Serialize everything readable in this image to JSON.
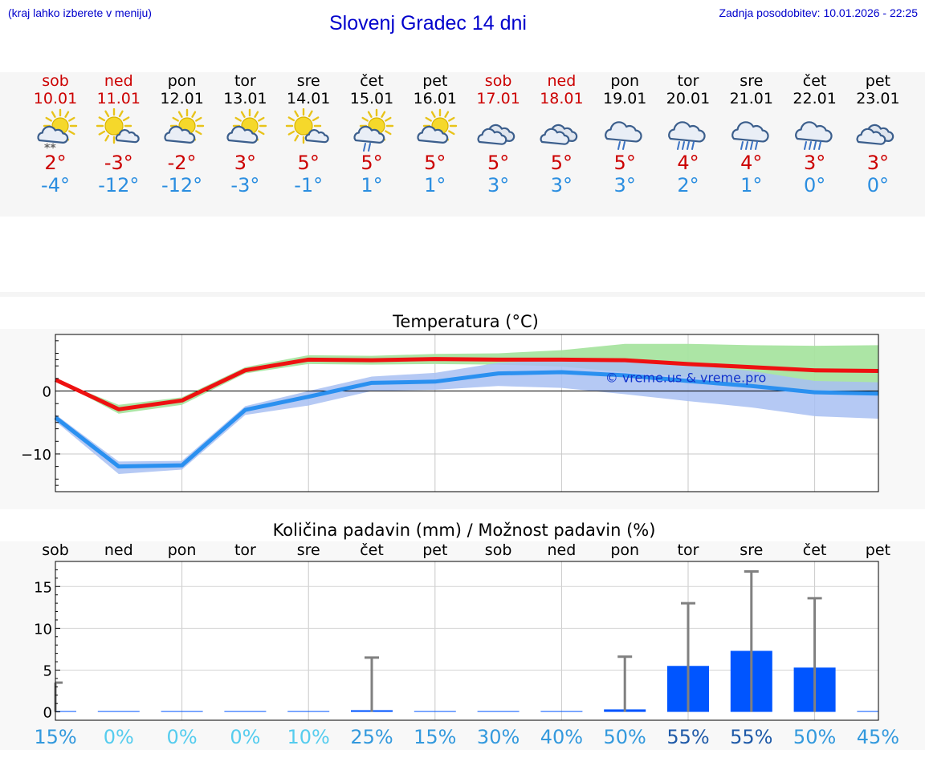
{
  "header": {
    "hint": "(kraj lahko izberete v meniju)",
    "title": "Slovenj Gradec 14 dni",
    "updated": "Zadnja posodobitev: 10.01.2026 - 22:25"
  },
  "days": [
    {
      "name": "sob",
      "date": "10.01",
      "weekend": true,
      "icon": "sun-cloud-snow",
      "tmax": "2°",
      "tmin": "-4°"
    },
    {
      "name": "ned",
      "date": "11.01",
      "weekend": true,
      "icon": "sun-small-cloud",
      "tmax": "-3°",
      "tmin": "-12°"
    },
    {
      "name": "pon",
      "date": "12.01",
      "weekend": false,
      "icon": "sun-cloud",
      "tmax": "-2°",
      "tmin": "-12°"
    },
    {
      "name": "tor",
      "date": "13.01",
      "weekend": false,
      "icon": "sun-cloud",
      "tmax": "3°",
      "tmin": "-3°"
    },
    {
      "name": "sre",
      "date": "14.01",
      "weekend": false,
      "icon": "sun-small-cloud",
      "tmax": "5°",
      "tmin": "-1°"
    },
    {
      "name": "čet",
      "date": "15.01",
      "weekend": false,
      "icon": "sun-cloud-rain",
      "tmax": "5°",
      "tmin": "1°"
    },
    {
      "name": "pet",
      "date": "16.01",
      "weekend": false,
      "icon": "sun-cloud",
      "tmax": "5°",
      "tmin": "1°"
    },
    {
      "name": "sob",
      "date": "17.01",
      "weekend": true,
      "icon": "cloudy",
      "tmax": "5°",
      "tmin": "3°"
    },
    {
      "name": "ned",
      "date": "18.01",
      "weekend": true,
      "icon": "cloudy",
      "tmax": "5°",
      "tmin": "3°"
    },
    {
      "name": "pon",
      "date": "19.01",
      "weekend": false,
      "icon": "cloud-light-rain",
      "tmax": "5°",
      "tmin": "3°"
    },
    {
      "name": "tor",
      "date": "20.01",
      "weekend": false,
      "icon": "cloud-rain",
      "tmax": "4°",
      "tmin": "2°"
    },
    {
      "name": "sre",
      "date": "21.01",
      "weekend": false,
      "icon": "cloud-rain",
      "tmax": "4°",
      "tmin": "1°"
    },
    {
      "name": "čet",
      "date": "22.01",
      "weekend": false,
      "icon": "cloud-rain",
      "tmax": "3°",
      "tmin": "0°"
    },
    {
      "name": "pet",
      "date": "23.01",
      "weekend": false,
      "icon": "cloudy",
      "tmax": "3°",
      "tmin": "0°"
    }
  ],
  "colors": {
    "max_line": "#ee1111",
    "min_line": "#2a90f0",
    "max_band": "#a8e4a0",
    "min_band": "#a8c0f2",
    "overlap_band": "#74bca8",
    "bar": "#0055ff",
    "whisker": "#808080",
    "weekend_text": "#cc0000",
    "tmin_text": "#2b8ee0"
  },
  "chart_data": [
    {
      "type": "line",
      "title": "Temperatura (°C)",
      "ylim": [
        -16,
        9
      ],
      "yticks": [
        -10,
        0
      ],
      "ytick_labels": [
        "−10",
        "0"
      ],
      "watermark": "© vreme.us & vreme.pro",
      "x": [
        0,
        1,
        2,
        3,
        4,
        5,
        6,
        7,
        8,
        9,
        10,
        11,
        12,
        13
      ],
      "series": [
        {
          "name": "max",
          "values": [
            1.8,
            -2.9,
            -1.5,
            3.3,
            5.0,
            4.9,
            5.1,
            5.0,
            5.0,
            4.9,
            4.3,
            3.8,
            3.3,
            3.2
          ],
          "band_low": [
            1.8,
            -2.2,
            -1.0,
            3.8,
            5.7,
            5.6,
            5.9,
            6.0,
            6.5,
            7.5,
            7.5,
            7.3,
            7.2,
            7.3
          ],
          "band_high": [
            1.8,
            -3.6,
            -2.2,
            2.8,
            4.3,
            4.2,
            4.3,
            4.2,
            3.9,
            3.0,
            2.2,
            1.0,
            0.0,
            -0.5
          ]
        },
        {
          "name": "min",
          "values": [
            -4.2,
            -12.0,
            -11.8,
            -3.0,
            -0.9,
            1.3,
            1.5,
            2.8,
            3.0,
            2.5,
            1.6,
            0.8,
            -0.2,
            -0.4
          ],
          "band_low": [
            -3.7,
            -11.2,
            -11.1,
            -2.4,
            0.0,
            2.3,
            2.9,
            4.5,
            5.0,
            5.0,
            4.2,
            3.2,
            1.6,
            1.4
          ],
          "band_high": [
            -4.8,
            -13.2,
            -12.5,
            -3.8,
            -2.3,
            0.0,
            0.2,
            0.8,
            0.5,
            -0.5,
            -1.6,
            -2.6,
            -4.0,
            -4.4
          ]
        }
      ]
    },
    {
      "type": "bar",
      "title": "Količina padavin (mm) / Možnost padavin (%)",
      "ylim": [
        -1,
        18
      ],
      "yticks": [
        0,
        5,
        10,
        15
      ],
      "categories": [
        "sob",
        "ned",
        "pon",
        "tor",
        "sre",
        "čet",
        "pet",
        "sob",
        "ned",
        "pon",
        "tor",
        "sre",
        "čet",
        "pet"
      ],
      "values": [
        0.0,
        0.0,
        0.0,
        0.0,
        0.0,
        0.2,
        0.0,
        0.0,
        0.0,
        0.3,
        5.5,
        7.3,
        5.3,
        0.0
      ],
      "whisker_max": [
        3.5,
        0.0,
        0.0,
        0.0,
        0.0,
        6.5,
        0.0,
        0.0,
        0.0,
        6.6,
        13.0,
        16.8,
        13.6,
        0.0
      ],
      "probability": [
        "15%",
        "0%",
        "0%",
        "0%",
        "10%",
        "25%",
        "15%",
        "30%",
        "40%",
        "50%",
        "55%",
        "55%",
        "50%",
        "45%"
      ],
      "probability_colors": [
        "#3399dd",
        "#55ccee",
        "#55ccee",
        "#55ccee",
        "#55ccee",
        "#3399dd",
        "#3399dd",
        "#3399dd",
        "#3399dd",
        "#3399dd",
        "#1f5aa8",
        "#1f5aa8",
        "#3399dd",
        "#3399dd"
      ]
    }
  ]
}
